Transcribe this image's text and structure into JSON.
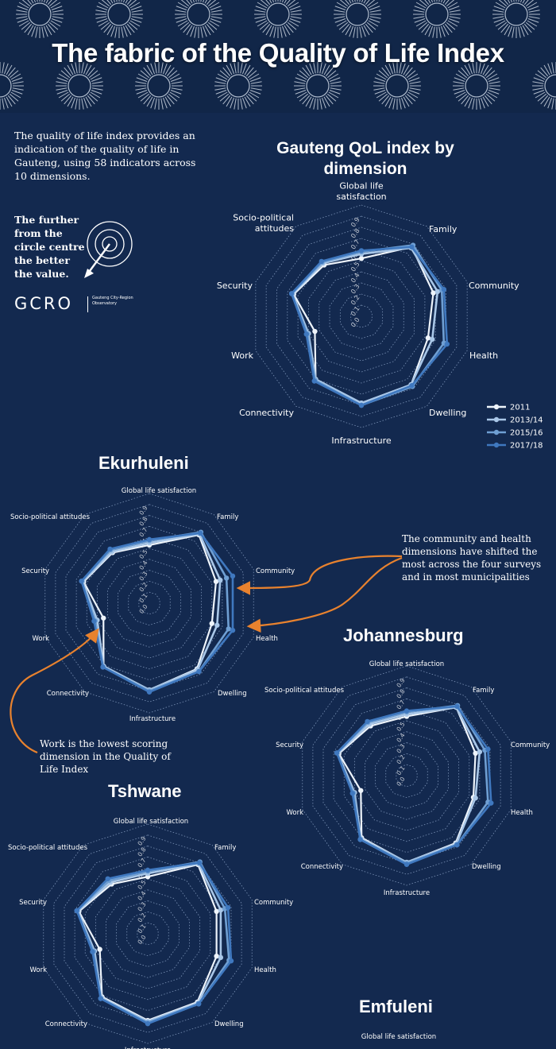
{
  "title": "The fabric of the Quality of Life Index",
  "intro": "The quality of life index provides an indication of the quality of life in Gauteng, using 58 indicators across 10 dimensions.",
  "further_note": "The further from the circle centre the better the value.",
  "logo": {
    "text": "GCRO",
    "subtitle": "Gauteng City-Region Observatory"
  },
  "annotations": {
    "community_health": "The community and health dimensions have shifted the most across the four surveys and in most municipalities",
    "work": "Work is the lowest scoring dimension in the Quality of Life Index"
  },
  "colors": {
    "background": "#13294f",
    "grid": "#8ea6c9",
    "arrow": "#e8822e",
    "series": [
      "#eef4fb",
      "#a9c7e8",
      "#6f9fd3",
      "#3f78bf"
    ]
  },
  "chart_data": [
    {
      "type": "radar",
      "title": "Gauteng QoL index by dimension",
      "axes": [
        "Global life satisfaction",
        "Family",
        "Community",
        "Health",
        "Dwelling",
        "Infrastructure",
        "Connectivity",
        "Work",
        "Security",
        "Socio-political attitudes"
      ],
      "axis_labels_display": [
        "Global life\nsatisfaction",
        "Family",
        "Community",
        "Health",
        "Dwelling",
        "Infrastructure",
        "Connectivity",
        "Work",
        "Security",
        "Socio-political\nattitudes"
      ],
      "ticks": [
        "0.0",
        "0.1",
        "0.2",
        "0.3",
        "0.4",
        "0.5",
        "0.6",
        "0.7",
        "0.8",
        "0.9"
      ],
      "rlim": [
        0,
        1
      ],
      "legend_position": "bottom-right",
      "series": [
        {
          "name": "2011",
          "values": [
            0.52,
            0.77,
            0.68,
            0.63,
            0.76,
            0.78,
            0.7,
            0.44,
            0.64,
            0.57
          ]
        },
        {
          "name": "2013/14",
          "values": [
            0.56,
            0.76,
            0.72,
            0.67,
            0.76,
            0.78,
            0.7,
            0.5,
            0.65,
            0.59
          ]
        },
        {
          "name": "2015/16",
          "values": [
            0.58,
            0.79,
            0.76,
            0.78,
            0.78,
            0.8,
            0.71,
            0.51,
            0.66,
            0.6
          ]
        },
        {
          "name": "2017/18",
          "values": [
            0.59,
            0.77,
            0.78,
            0.81,
            0.77,
            0.8,
            0.72,
            0.52,
            0.66,
            0.61
          ]
        }
      ]
    },
    {
      "type": "radar",
      "title": "Ekurhuleni",
      "axes": [
        "Global life satisfaction",
        "Family",
        "Community",
        "Health",
        "Dwelling",
        "Infrastructure",
        "Connectivity",
        "Work",
        "Security",
        "Socio-political attitudes"
      ],
      "axis_labels_display": [
        "Global life satisfaction",
        "Family",
        "Community",
        "Health",
        "Dwelling",
        "Infrastructure",
        "Connectivity",
        "Work",
        "Security",
        "Socio-political attitudes"
      ],
      "ticks": [
        "0.0",
        "0.1",
        "0.2",
        "0.3",
        "0.4",
        "0.5",
        "0.6",
        "0.7",
        "0.8",
        "0.9"
      ],
      "rlim": [
        0,
        1
      ],
      "series": [
        {
          "name": "2011",
          "values": [
            0.53,
            0.77,
            0.64,
            0.6,
            0.74,
            0.79,
            0.71,
            0.44,
            0.63,
            0.57
          ]
        },
        {
          "name": "2013/14",
          "values": [
            0.55,
            0.78,
            0.68,
            0.65,
            0.75,
            0.79,
            0.71,
            0.5,
            0.64,
            0.58
          ]
        },
        {
          "name": "2015/16",
          "values": [
            0.57,
            0.8,
            0.74,
            0.76,
            0.77,
            0.8,
            0.72,
            0.52,
            0.65,
            0.6
          ]
        },
        {
          "name": "2017/18",
          "values": [
            0.58,
            0.79,
            0.8,
            0.8,
            0.77,
            0.81,
            0.72,
            0.53,
            0.65,
            0.61
          ]
        }
      ]
    },
    {
      "type": "radar",
      "title": "Johannesburg",
      "axes": [
        "Global life satisfaction",
        "Family",
        "Community",
        "Health",
        "Dwelling",
        "Infrastructure",
        "Connectivity",
        "Work",
        "Security",
        "Socio-political attitudes"
      ],
      "axis_labels_display": [
        "Global life satisfaction",
        "Family",
        "Community",
        "Health",
        "Dwelling",
        "Infrastructure",
        "Connectivity",
        "Work",
        "Security",
        "Socio-political attitudes"
      ],
      "ticks": [
        "0.0",
        "0.1",
        "0.2",
        "0.3",
        "0.4",
        "0.5",
        "0.6",
        "0.7",
        "0.8",
        "0.9"
      ],
      "rlim": [
        0,
        1
      ],
      "series": [
        {
          "name": "2011",
          "values": [
            0.54,
            0.77,
            0.66,
            0.64,
            0.76,
            0.79,
            0.7,
            0.44,
            0.65,
            0.56
          ]
        },
        {
          "name": "2013/14",
          "values": [
            0.56,
            0.77,
            0.7,
            0.66,
            0.77,
            0.79,
            0.71,
            0.5,
            0.66,
            0.58
          ]
        },
        {
          "name": "2015/16",
          "values": [
            0.58,
            0.79,
            0.75,
            0.78,
            0.78,
            0.8,
            0.72,
            0.51,
            0.67,
            0.6
          ]
        },
        {
          "name": "2017/18",
          "values": [
            0.59,
            0.78,
            0.78,
            0.81,
            0.78,
            0.81,
            0.72,
            0.52,
            0.67,
            0.61
          ]
        }
      ]
    },
    {
      "type": "radar",
      "title": "Tshwane",
      "axes": [
        "Global life satisfaction",
        "Family",
        "Community",
        "Health",
        "Dwelling",
        "Infrastructure",
        "Connectivity",
        "Work",
        "Security",
        "Socio-political attitudes"
      ],
      "axis_labels_display": [
        "Global life satisfaction",
        "Family",
        "Community",
        "Health",
        "Dwelling",
        "Infrastructure",
        "Connectivity",
        "Work",
        "Security",
        "Socio-political attitudes"
      ],
      "ticks": [
        "0.0",
        "0.1",
        "0.2",
        "0.3",
        "0.4",
        "0.5",
        "0.6",
        "0.7",
        "0.8",
        "0.9"
      ],
      "rlim": [
        0,
        1
      ],
      "series": [
        {
          "name": "2011",
          "values": [
            0.52,
            0.78,
            0.66,
            0.66,
            0.77,
            0.79,
            0.71,
            0.46,
            0.66,
            0.56
          ]
        },
        {
          "name": "2013/14",
          "values": [
            0.55,
            0.79,
            0.7,
            0.7,
            0.78,
            0.8,
            0.72,
            0.51,
            0.67,
            0.58
          ]
        },
        {
          "name": "2015/16",
          "values": [
            0.57,
            0.81,
            0.74,
            0.78,
            0.79,
            0.81,
            0.73,
            0.52,
            0.68,
            0.6
          ]
        },
        {
          "name": "2017/18",
          "values": [
            0.58,
            0.8,
            0.77,
            0.8,
            0.79,
            0.82,
            0.73,
            0.53,
            0.68,
            0.62
          ]
        }
      ]
    },
    {
      "type": "radar",
      "title": "Emfuleni",
      "axes": [
        "Global life satisfaction"
      ],
      "axis_labels_display": [
        "Global life satisfaction"
      ],
      "partial": true
    }
  ]
}
